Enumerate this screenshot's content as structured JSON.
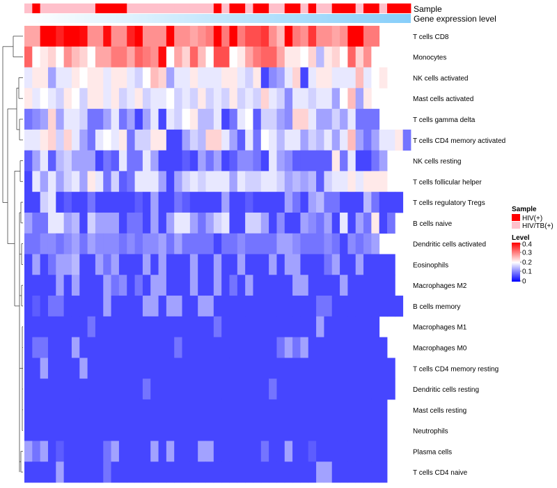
{
  "chart_data": {
    "type": "heatmap",
    "title": "",
    "annotation_labels": {
      "sample": "Sample",
      "gene": "Gene expression level"
    },
    "sample_groups": {
      "hiv": {
        "label": "HIV(+)",
        "color": "#ff0000"
      },
      "tb": {
        "label": "HIV/TB(+)",
        "color": "#ffc0cb"
      }
    },
    "sample_order": "0100222221111020202200201211211221101201110110",
    "gene_expression_gradient": [
      "#ffffff",
      "#87cefa"
    ],
    "rows": [
      "T cells CD8",
      "Monocytes",
      "NK cells activated",
      "Mast cells activated",
      "T cells gamma delta",
      "T cells CD4 memory activated",
      "NK cells resting",
      "T cells follicular helper",
      "T cells regulatory  Tregs",
      "B cells naive",
      "Dendritic cells activated",
      "Eosinophils",
      "Macrophages M2",
      "B cells memory",
      "Macrophages M1",
      "Macrophages M0",
      "T cells CD4 memory resting",
      "Dendritic cells resting",
      "Mast cells resting",
      "Neutrophils",
      "Plasma cells",
      "T cells CD4 naive"
    ],
    "values": [
      "ppyxvyywqqwqqvyqqqyqqpqryryrttuqoyrquqqpqyyrr",
      "slmnlqonlpprrpsrqwlpnsolttlmprsspmmlnimnlsnqll",
      "kmmhkkmlmmkmmkjlonhkkmkkkmmkjmdghkndkmmkkkoklm",
      "mklkjmljmmkmjkmjkkljkjmjkjmjkjnkjgkkjkkhlohm",
      "fghnhkkjffhkfhdhkdkjlmiikdfklejjhgnnkhhjhkfff",
      "kkmnjnkhfklkmfjjmmddhjinnkhekflkikkhjikhkohfhkkmf",
      "ehkeijhhhdfekffkhdddedhfhdeggfdkhgeeeeemfkddfh",
      "dkhkhjkhmkfjefkkkhdhjkjkkkhkjjkkjhihiejkkmkmmm",
      "ddjkdeddfdddddedhddfeddddhddeddddhfdhiffdddifddd",
      "hffkkhidjhhhdffdhdhkkhfhjkddjjhdgddhgfhdkdhfmdf",
      "ffggfghfhgggfgfgghfhffffdffgffffhhgfffgfdgfgh",
      "dhdfhhiddhfhdddhdhdddhddhddhdddhdhhdddfhddhdddd",
      "ddddhdhdddhfgdfdhhdddhddhdfdhdddddhhddddhdddddd",
      "dedffdddddhddddhhdhhddhhdddddddddddddffddddddddd",
      "ddddddddfdddddddddddddddfddddddddddddhddddddd",
      "dffdddhddddddddddddfddddddddddddfhfhdddddddddd",
      "ddhddddhddddddddddddddddddddddddddddddddddddddd",
      "dddddddddddddddfdddddddddddddddfddddddddddddddd",
      "dddddddddddddddddddddddddddddddddddddddddddddd",
      "dddddddddddddddddddddddddddddddddddddddddddddd",
      "hfhdedddddfhddddhdhdddhhddddddfddhddeddddddddd",
      "ddddhdddddfddddddddddddddddddddddddddhhddddddd"
    ],
    "value_encoding": "letters a-z map linearly to 0.00-0.50 (a=0.00, z=0.50)",
    "legend": {
      "sample_title": "Sample",
      "level_title": "Level",
      "level_ticks": [
        "0.4",
        "0.3",
        "0.2",
        "0.1",
        "0"
      ],
      "color_scale": [
        {
          "value": 0.0,
          "color": "#0000ff"
        },
        {
          "value": 0.22,
          "color": "#ffffff"
        },
        {
          "value": 0.45,
          "color": "#ff0000"
        }
      ],
      "position": "right"
    },
    "row_dendrogram": true
  }
}
